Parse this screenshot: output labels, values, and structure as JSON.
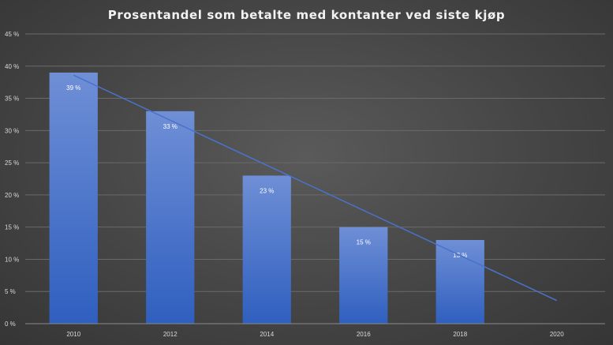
{
  "chart_data": {
    "type": "bar",
    "title": "Prosentandel som betalte med kontanter ved siste kjøp",
    "xlabel": "",
    "ylabel": "",
    "categories": [
      "2010",
      "2012",
      "2014",
      "2016",
      "2018",
      "2020"
    ],
    "series": [
      {
        "values": [
          39,
          33,
          23,
          15,
          13,
          null
        ]
      }
    ],
    "data_labels": [
      "39 %",
      "33 %",
      "23 %",
      "15 %",
      "13 %",
      ""
    ],
    "y_ticks": [
      "0 %",
      "5 %",
      "10 %",
      "15 %",
      "20 %",
      "25 %",
      "30 %",
      "35 %",
      "40 %",
      "45 %"
    ],
    "ylim": [
      0,
      45
    ],
    "trendline": {
      "type": "linear",
      "start": {
        "x": "2010",
        "y": 38.6
      },
      "end": {
        "x": "2020",
        "y": 3.6
      }
    },
    "grid": true,
    "legend": "none",
    "colors": {
      "bar_top": "#6f8fd6",
      "bar_bottom": "#2f5fbf",
      "trendline": "#4a72c9",
      "gridline": "#6a6a6a"
    }
  }
}
